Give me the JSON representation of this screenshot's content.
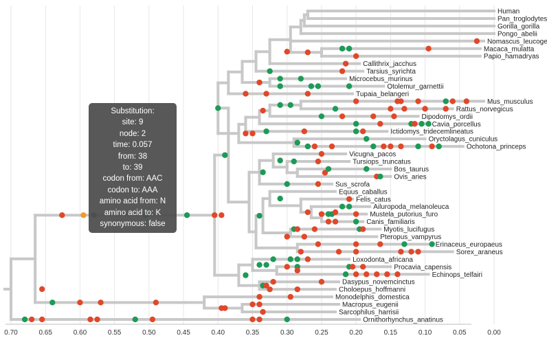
{
  "chart_data": {
    "type": "phylogenetic-tree",
    "xlim": [
      0.7,
      0.0
    ],
    "ticks": [
      "0.70",
      "0.65",
      "0.60",
      "0.55",
      "0.50",
      "0.45",
      "0.40",
      "0.35",
      "0.30",
      "0.25",
      "0.20",
      "0.15",
      "0.10",
      "0.05",
      "0.00"
    ],
    "grid": true,
    "colors": {
      "branch": "#c8c8c8",
      "synonymous": "#1d9a57",
      "nonsynonymous": "#e0482a",
      "highlight": "#f59a23"
    },
    "leaves": [
      "Human",
      "Pan_troglodytes",
      "Gorilla_gorilla",
      "Pongo_abelii",
      "Nomascus_leucogenys",
      "Macaca_mulatta",
      "Papio_hamadryas",
      "Callithrix_jacchus",
      "Tarsius_syrichta",
      "Microcebus_murinus",
      "Otolemur_garnettii",
      "Tupaia_belangeri",
      "Mus_musculus",
      "Rattus_norvegicus",
      "Dipodomys_ordii",
      "Cavia_porcellus",
      "Ictidomys_tridecemlineatus",
      "Oryctolagus_cuniculus",
      "Ochotona_princeps",
      "Vicugna_pacos",
      "Tursiops_truncatus",
      "Bos_taurus",
      "Ovis_aries",
      "Sus_scrofa",
      "Equus_caballus",
      "Felis_catus",
      "Ailuropoda_melanoleuca",
      "Mustela_putorius_furo",
      "Canis_familiaris",
      "Myotis_lucifugus",
      "Pteropus_vampyrus",
      "Erinaceus_europaeus",
      "Sorex_araneus",
      "Loxodonta_africana",
      "Procavia_capensis",
      "Echinops_telfairi",
      "Dasypus_novemcinctus",
      "Choloepus_hoffmanni",
      "Monodelphis_domestica",
      "Macropus_eugenii",
      "Sarcophilus_harrisii",
      "Ornithorhynchus_anatinus"
    ],
    "tooltip": {
      "lines": [
        "Substitution:",
        "site: 9",
        "node: 2",
        "time: 0.057",
        "from: 38",
        "to: 39",
        "codon from: AAC",
        "codon to: AAA",
        "amino acid from: N",
        "amino acid to: K",
        "synonymous: false"
      ]
    }
  }
}
